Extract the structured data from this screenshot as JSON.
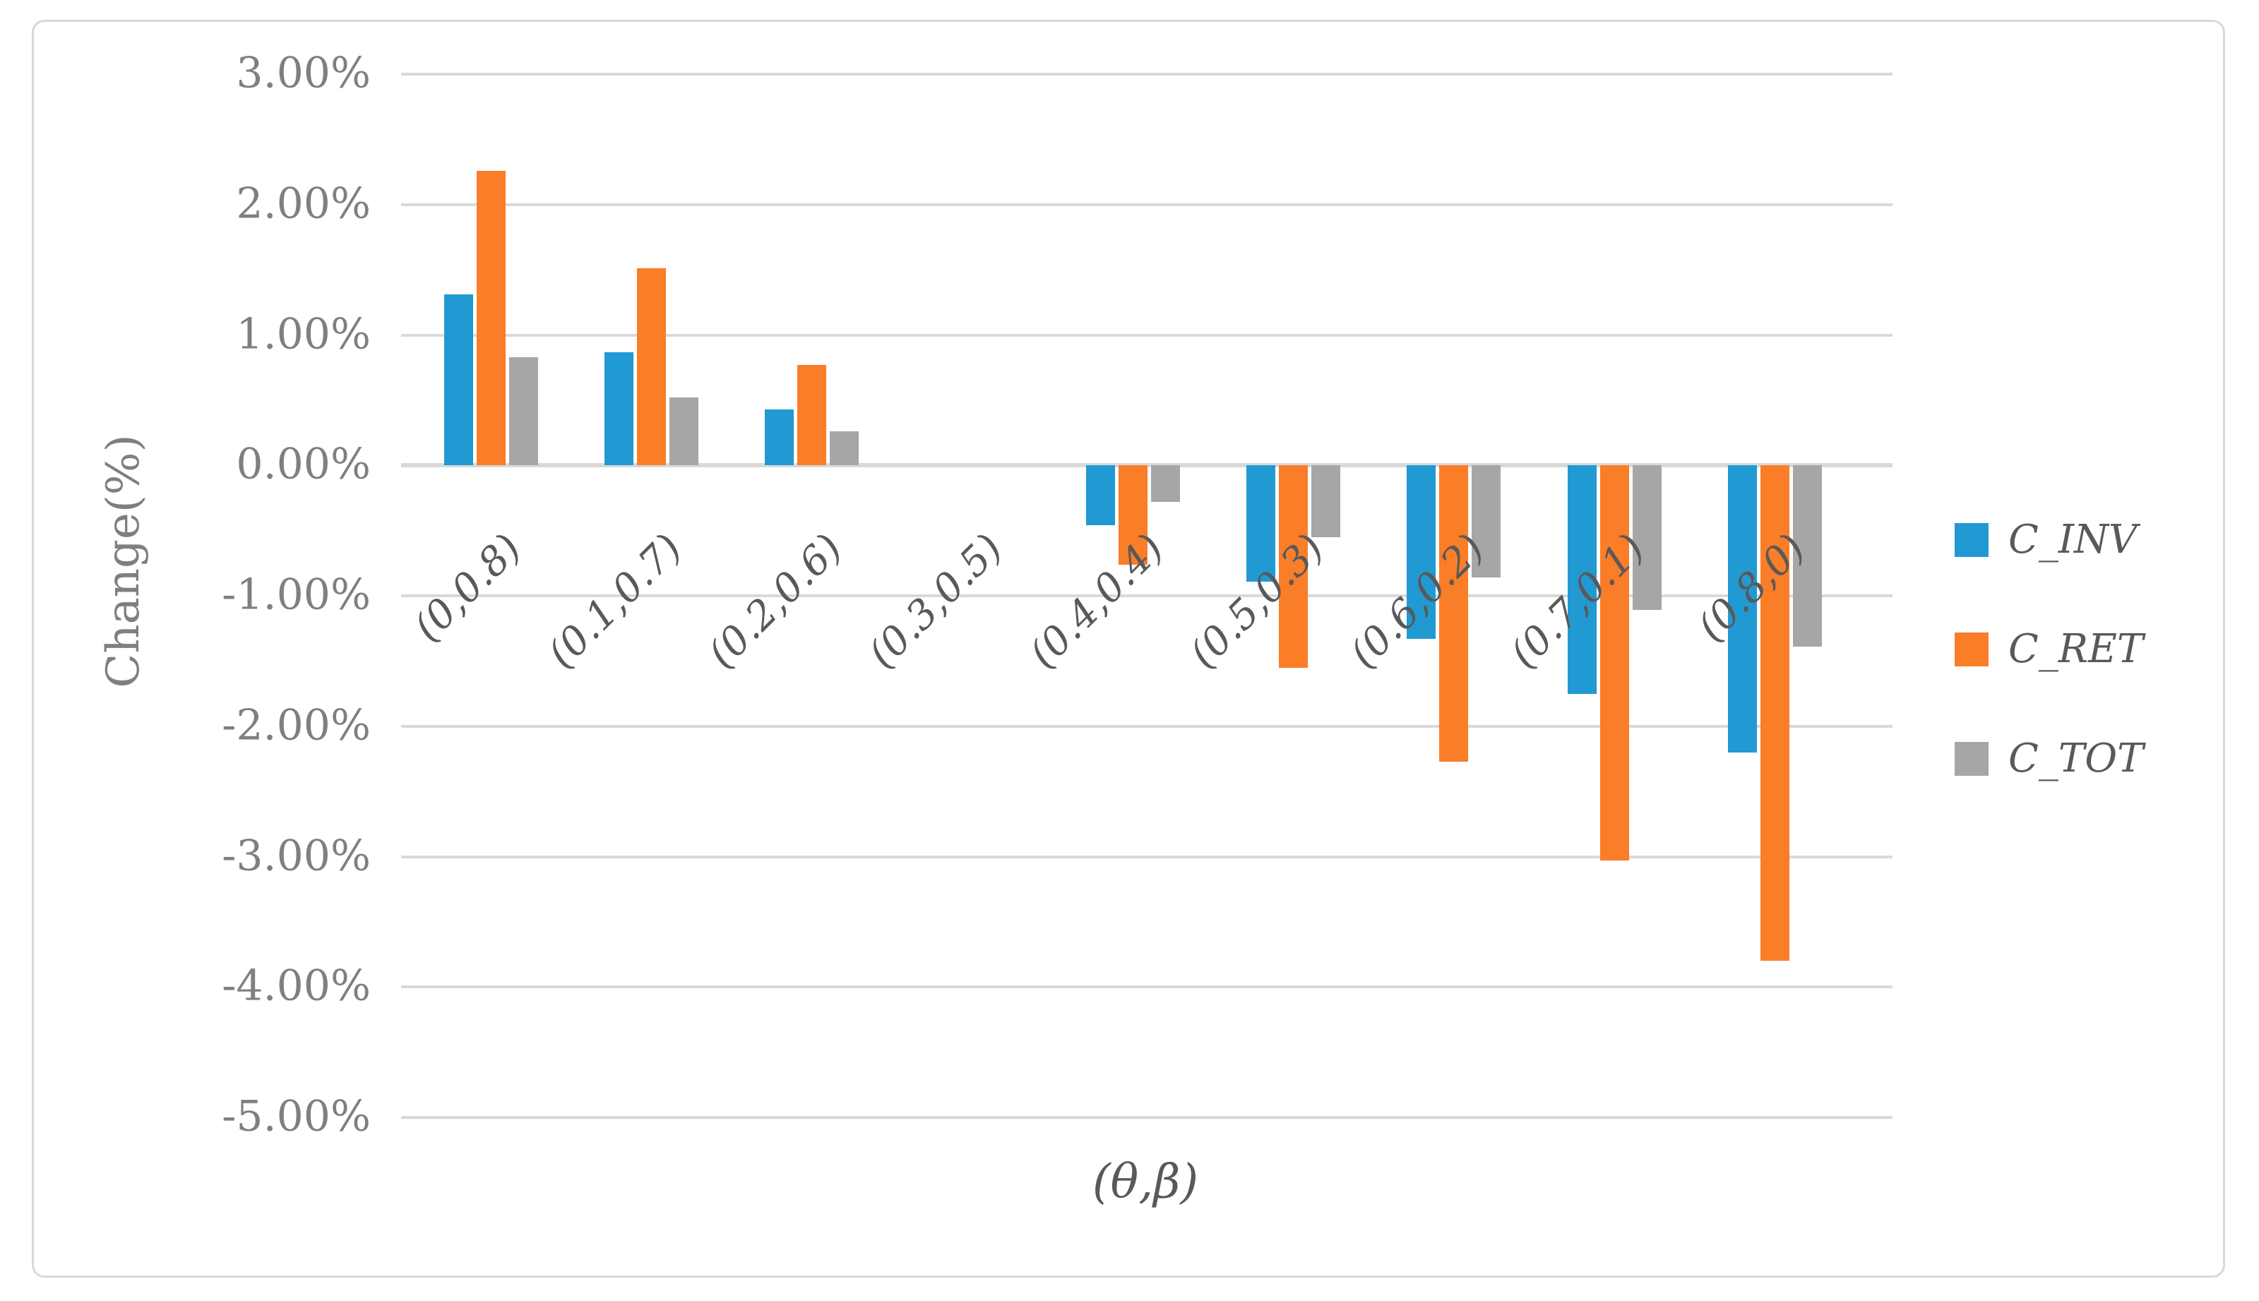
{
  "figure": {
    "background": "#FFFFFF",
    "border_color": "#D8D8D8"
  },
  "chart_data": {
    "type": "bar",
    "title": "",
    "xlabel": "(θ,β)",
    "ylabel": "Change(%)",
    "categories": [
      "(0,0.8)",
      "(0.1,0.7)",
      "(0.2,0.6)",
      "(0.3,0.5)",
      "(0.4,0.4)",
      "(0.5,0.3)",
      "(0.6,0.2)",
      "(0.7,0.1)",
      "(0.8,0)"
    ],
    "series": [
      {
        "name": "C_INV",
        "color": "#2199D3",
        "values": [
          1.31,
          0.87,
          0.43,
          0,
          -0.46,
          -0.89,
          -1.33,
          -1.75,
          -2.2
        ]
      },
      {
        "name": "C_RET",
        "color": "#FA7D28",
        "values": [
          2.26,
          1.51,
          0.77,
          0,
          -0.76,
          -1.55,
          -2.27,
          -3.03,
          -3.8
        ]
      },
      {
        "name": "C_TOT",
        "color": "#A6A6A6",
        "values": [
          0.83,
          0.52,
          0.26,
          0,
          -0.28,
          -0.55,
          -0.86,
          -1.11,
          -1.39
        ]
      }
    ],
    "yticks": [
      {
        "label": "3.00%",
        "value": 3
      },
      {
        "label": "2.00%",
        "value": 2
      },
      {
        "label": "1.00%",
        "value": 1
      },
      {
        "label": "0.00%",
        "value": 0
      },
      {
        "label": "-1.00%",
        "value": -1
      },
      {
        "label": "-2.00%",
        "value": -2
      },
      {
        "label": "-3.00%",
        "value": -3
      },
      {
        "label": "-4.00%",
        "value": -4
      },
      {
        "label": "-5.00%",
        "value": -5
      }
    ],
    "ylim": [
      -5,
      3
    ],
    "grid": true,
    "legend_position": "right",
    "gridline_color": "#D9D9D9",
    "tick_label_color": "#7F7F7F",
    "category_label_color": "#595959",
    "legend_text_color": "#595959"
  }
}
